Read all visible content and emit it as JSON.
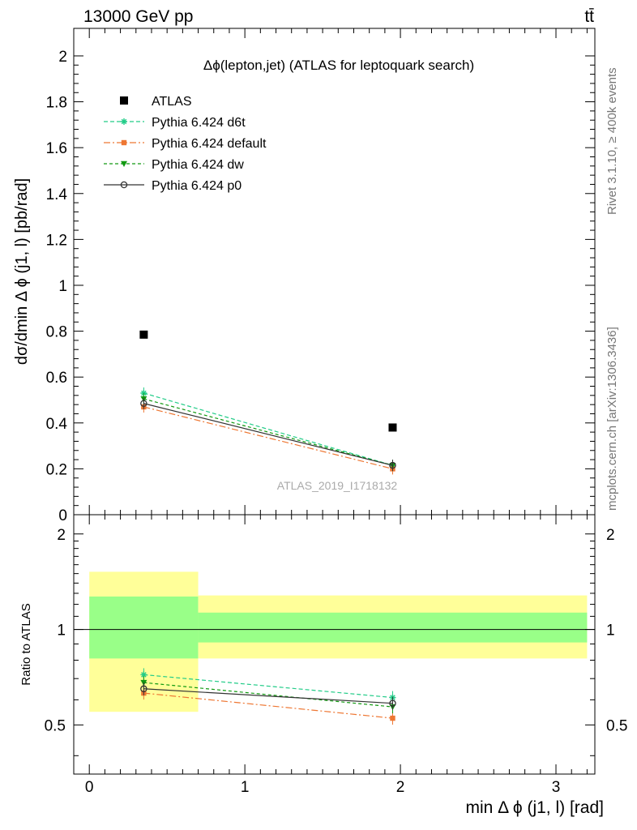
{
  "header": {
    "energy_label": "13000 GeV pp",
    "process_label": "tt̄"
  },
  "side_labels": {
    "rivet": "Rivet 3.1.10, ≥ 400k events",
    "mcplots": "mcplots.cern.ch [arXiv:1306.3436]"
  },
  "watermark": "ATLAS_2019_I1718132",
  "colors": {
    "data": "#000000",
    "d6t": "#22cc88",
    "default": "#ee7733",
    "dw": "#119911",
    "p0": "#333333",
    "band_inner": "#99ff88",
    "band_outer": "#ffff99"
  },
  "chart_data": [
    {
      "type": "scatter",
      "title": "Δϕ(lepton,jet) (ATLAS for leptoquark search)",
      "xlabel": "",
      "ylabel": "dσ/dmin Δ ϕ (j1, l) [pb/rad]",
      "xlim": [
        -0.1,
        3.25
      ],
      "ylim": [
        0,
        2.12
      ],
      "y_ticks": [
        "0",
        "0.2",
        "0.4",
        "0.6",
        "0.8",
        "1",
        "1.2",
        "1.4",
        "1.6",
        "1.8",
        "2"
      ],
      "legend_position": "top-left",
      "series": [
        {
          "name": "ATLAS",
          "key": "data",
          "marker": "square",
          "x": [
            0.35,
            1.95
          ],
          "y": [
            0.785,
            0.38
          ]
        },
        {
          "name": "Pythia 6.424 d6t",
          "key": "d6t",
          "marker": "star",
          "x": [
            0.35,
            1.95
          ],
          "y": [
            0.53,
            0.215
          ]
        },
        {
          "name": "Pythia 6.424 default",
          "key": "default",
          "marker": "filled-square",
          "x": [
            0.35,
            1.95
          ],
          "y": [
            0.47,
            0.2
          ]
        },
        {
          "name": "Pythia 6.424 dw",
          "key": "dw",
          "marker": "triangle-down",
          "x": [
            0.35,
            1.95
          ],
          "y": [
            0.505,
            0.215
          ]
        },
        {
          "name": "Pythia 6.424 p0",
          "key": "p0",
          "marker": "open-circle",
          "x": [
            0.35,
            1.95
          ],
          "y": [
            0.485,
            0.215
          ]
        }
      ]
    },
    {
      "type": "line",
      "title": "",
      "xlabel": "min Δ ϕ (j1, l) [rad]",
      "ylabel": "Ratio to ATLAS",
      "xlim": [
        -0.1,
        3.25
      ],
      "ylim": [
        0.35,
        2.3
      ],
      "x_ticks": [
        "0",
        "1",
        "2",
        "3"
      ],
      "y_ticks": [
        "0.5",
        "1",
        "2"
      ],
      "log_y": true,
      "bands": [
        {
          "x_range": [
            0,
            0.7
          ],
          "inner": [
            0.81,
            1.27
          ],
          "outer": [
            0.55,
            1.52
          ]
        },
        {
          "x_range": [
            0.7,
            3.2
          ],
          "inner": [
            0.91,
            1.13
          ],
          "outer": [
            0.81,
            1.28
          ]
        }
      ],
      "series": [
        {
          "name": "Pythia 6.424 d6t",
          "key": "d6t",
          "marker": "star",
          "x": [
            0.35,
            1.95
          ],
          "y": [
            0.72,
            0.61
          ]
        },
        {
          "name": "Pythia 6.424 default",
          "key": "default",
          "marker": "filled-square",
          "x": [
            0.35,
            1.95
          ],
          "y": [
            0.63,
            0.525
          ]
        },
        {
          "name": "Pythia 6.424 dw",
          "key": "dw",
          "marker": "triangle-down",
          "x": [
            0.35,
            1.95
          ],
          "y": [
            0.68,
            0.57
          ]
        },
        {
          "name": "Pythia 6.424 p0",
          "key": "p0",
          "marker": "open-circle",
          "x": [
            0.35,
            1.95
          ],
          "y": [
            0.65,
            0.585
          ]
        }
      ]
    }
  ]
}
